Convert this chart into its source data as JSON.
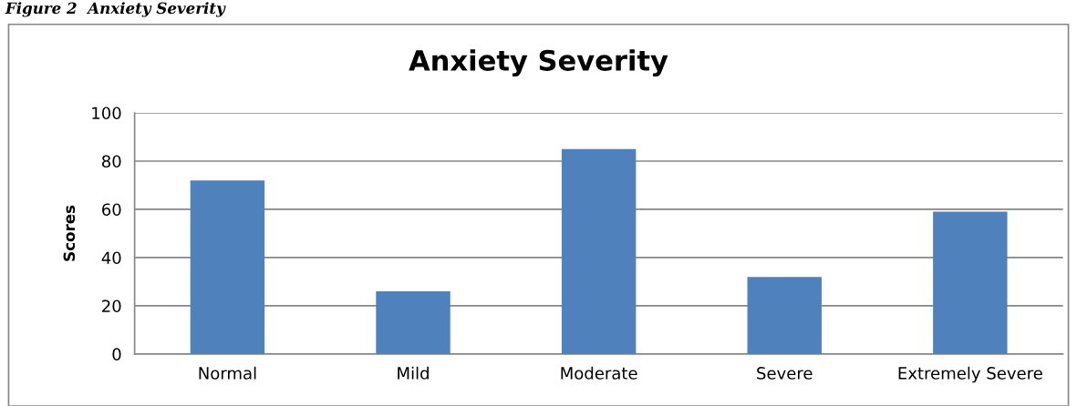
{
  "chart_data": {
    "type": "bar",
    "title": "Anxiety Severity",
    "ylabel": "Scores",
    "annotations": [
      "Figure 2  Anxiety Severity"
    ],
    "categories": [
      "Normal",
      "Mild",
      "Moderate",
      "Severe",
      "Extremely Severe"
    ],
    "values": [
      72,
      26,
      85,
      32,
      59
    ],
    "color": "#4f81bd",
    "ylim": [
      0,
      100
    ],
    "yticks": [
      0,
      20,
      40,
      60,
      80,
      100
    ],
    "grid": "y"
  }
}
